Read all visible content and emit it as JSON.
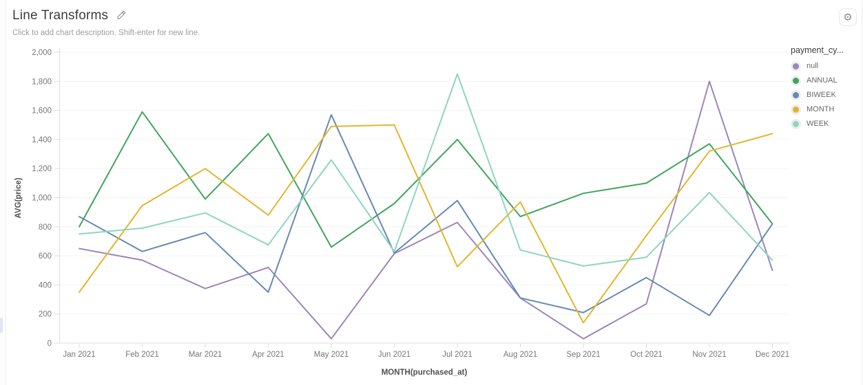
{
  "header": {
    "title": "Line Transforms",
    "subtitle": "Click to add chart description. Shift-enter for new line."
  },
  "icons": {
    "edit": "pencil-icon",
    "settings": "gear-icon",
    "settings_glyph": "⚙"
  },
  "chart_data": {
    "type": "line",
    "title": "Line Transforms",
    "xlabel": "MONTH(purchased_at)",
    "ylabel": "AVG(price)",
    "categories": [
      "Jan 2021",
      "Feb 2021",
      "Mar 2021",
      "Apr 2021",
      "May 2021",
      "Jun 2021",
      "Jul 2021",
      "Aug 2021",
      "Sep 2021",
      "Oct 2021",
      "Nov 2021",
      "Dec 2021"
    ],
    "ylim": [
      0,
      2000
    ],
    "ytick_step": 200,
    "grid": true,
    "legend_title": "payment_cy...",
    "legend_position": "right",
    "series": [
      {
        "name": "null",
        "color": "#9b85ba",
        "values": [
          650,
          570,
          375,
          520,
          30,
          615,
          830,
          310,
          30,
          270,
          1800,
          500
        ]
      },
      {
        "name": "ANNUAL",
        "color": "#3fa45c",
        "values": [
          800,
          1590,
          990,
          1440,
          660,
          960,
          1400,
          870,
          1030,
          1100,
          1370,
          820
        ]
      },
      {
        "name": "BIWEEK",
        "color": "#6489b5",
        "values": [
          870,
          630,
          760,
          350,
          1570,
          620,
          980,
          310,
          210,
          450,
          190,
          820
        ]
      },
      {
        "name": "MONTH",
        "color": "#e2b62c",
        "values": [
          350,
          945,
          1200,
          880,
          1490,
          1500,
          525,
          970,
          140,
          740,
          1320,
          1440
        ]
      },
      {
        "name": "WEEK",
        "color": "#8dd5c1",
        "values": [
          750,
          790,
          895,
          675,
          1260,
          630,
          1850,
          640,
          530,
          590,
          1035,
          570
        ]
      }
    ]
  }
}
